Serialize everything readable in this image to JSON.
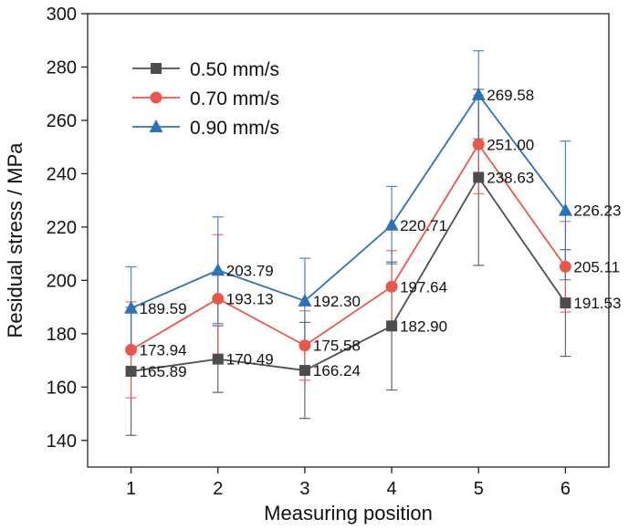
{
  "chart_data": {
    "type": "line",
    "xlabel": "Measuring position",
    "ylabel": "Residual stress / MPa",
    "x": [
      1,
      2,
      3,
      4,
      5,
      6
    ],
    "xlim": [
      0.5,
      6.5
    ],
    "ylim": [
      130,
      300
    ],
    "yticks": [
      140,
      160,
      180,
      200,
      220,
      240,
      260,
      280,
      300
    ],
    "legend_position": "top-left",
    "grid": false,
    "series": [
      {
        "name": "0.50 mm/s",
        "marker": "square",
        "color": "#4d4d4d",
        "values": [
          165.89,
          170.49,
          166.24,
          182.9,
          238.63,
          191.53
        ],
        "labels": [
          "165.89",
          "170.49",
          "166.24",
          "182.90",
          "238.63",
          "191.53"
        ],
        "error": [
          24,
          12.5,
          18,
          24,
          33,
          20
        ]
      },
      {
        "name": "0.70 mm/s",
        "marker": "circle",
        "color": "#e8584a",
        "values": [
          173.94,
          193.13,
          175.58,
          197.64,
          251.0,
          205.11
        ],
        "labels": [
          "173.94",
          "193.13",
          "175.58",
          "197.64",
          "251.00",
          "205.11"
        ],
        "error": [
          18,
          24,
          13,
          13.5,
          18.5,
          17
        ]
      },
      {
        "name": "0.90 mm/s",
        "marker": "triangle",
        "color": "#2d72b8",
        "values": [
          189.59,
          203.79,
          192.3,
          220.71,
          269.58,
          226.23
        ],
        "labels": [
          "189.59",
          "203.79",
          "192.30",
          "220.71",
          "269.58",
          "226.23"
        ],
        "error": [
          15.5,
          20,
          16,
          14.5,
          16.5,
          26
        ]
      }
    ]
  }
}
